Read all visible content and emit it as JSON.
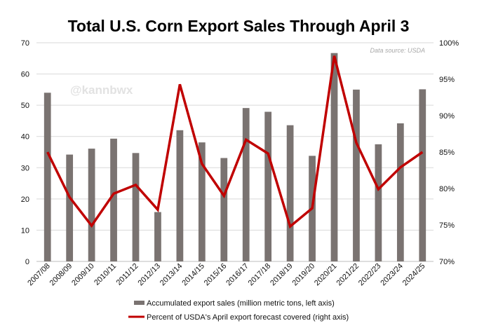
{
  "chart_data": {
    "type": "bar+line",
    "title": "Total U.S. Corn Export Sales Through April 3",
    "source_note": "Data source: USDA",
    "watermark": "@kannbwx",
    "categories": [
      "2007/08",
      "2008/09",
      "2009/10",
      "2010/11",
      "2011/12",
      "2012/13",
      "2013/14",
      "2014/15",
      "2015/16",
      "2016/17",
      "2017/18",
      "2018/19",
      "2019/20",
      "2020/21",
      "2021/22",
      "2022/23",
      "2023/24",
      "2024/25"
    ],
    "series": [
      {
        "name": "Accumulated export sales (million metric tons, left axis)",
        "type": "bar",
        "axis": "left",
        "color": "#7a7371",
        "values": [
          54,
          34.2,
          36.1,
          39.3,
          34.7,
          15.8,
          42,
          38.1,
          33.1,
          49.1,
          47.9,
          43.6,
          33.8,
          66.7,
          55,
          37.5,
          44.2,
          55.1
        ]
      },
      {
        "name": "Percent of USDA's April export forecast covered (right axis)",
        "type": "line",
        "axis": "right",
        "color": "#c00000",
        "values": [
          85,
          78.8,
          74.9,
          79.3,
          80.5,
          77.1,
          94.3,
          83.4,
          79,
          86.7,
          84.8,
          74.8,
          77.3,
          98.2,
          86.3,
          79.9,
          82.9,
          85
        ]
      }
    ],
    "y_left": {
      "min": 0,
      "max": 70,
      "ticks": [
        "0",
        "10",
        "20",
        "30",
        "40",
        "50",
        "60",
        "70"
      ]
    },
    "y_right": {
      "min": 70,
      "max": 100,
      "ticks": [
        "70%",
        "75%",
        "80%",
        "85%",
        "90%",
        "95%",
        "100%"
      ]
    },
    "grid": true,
    "legend_position": "bottom"
  }
}
